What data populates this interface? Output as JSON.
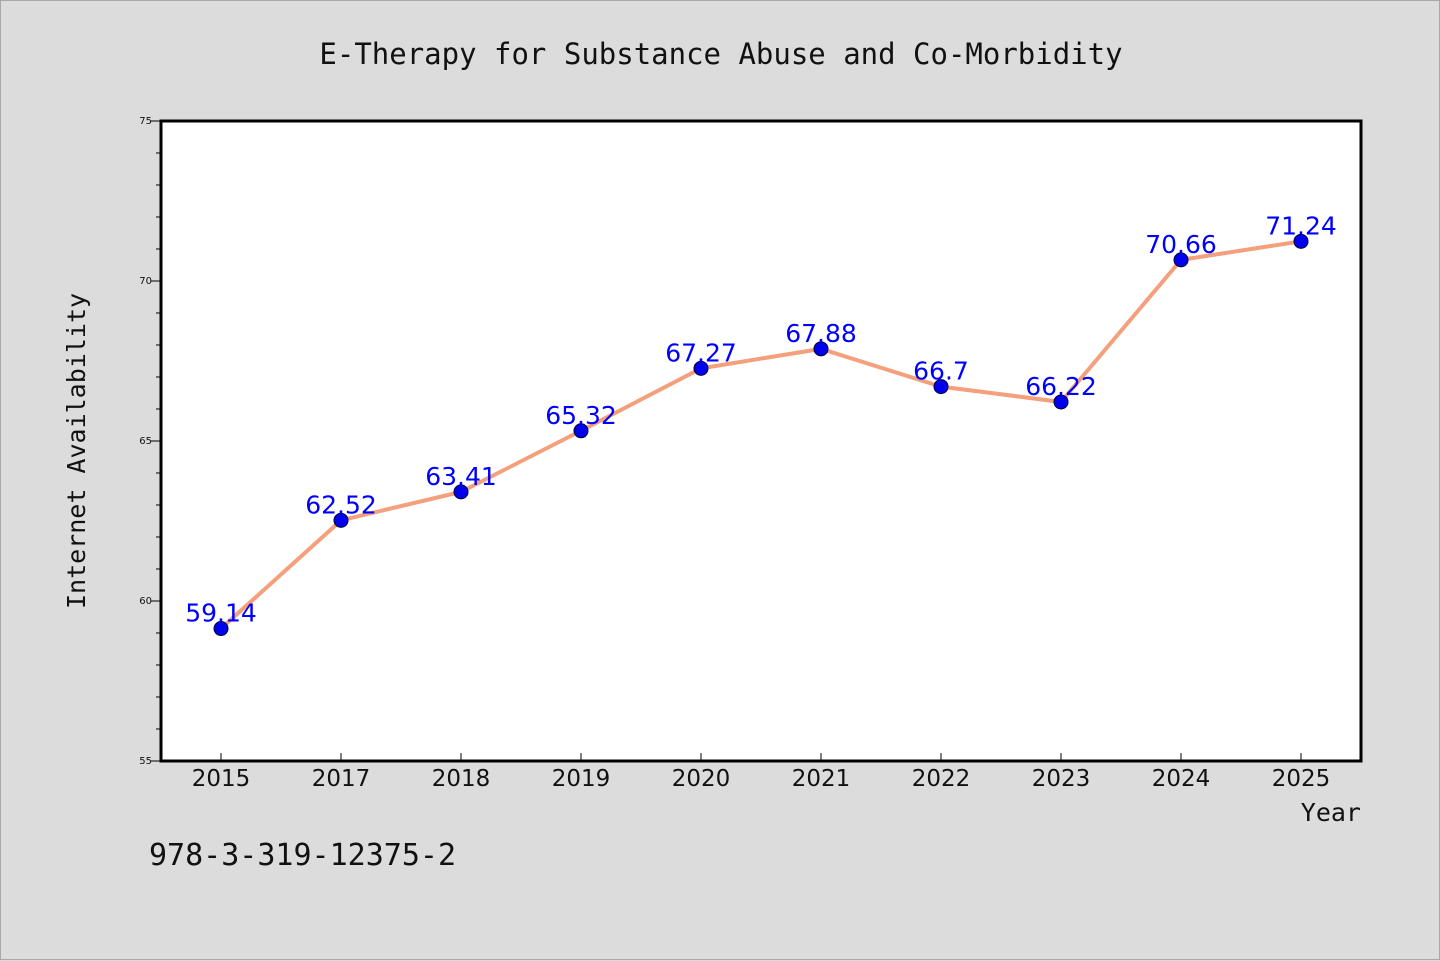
{
  "chart_data": {
    "type": "line",
    "title": "E-Therapy for Substance Abuse and Co-Morbidity",
    "xlabel": "Year",
    "ylabel": "Internet Availability",
    "categories": [
      "2015",
      "2017",
      "2018",
      "2019",
      "2020",
      "2021",
      "2022",
      "2023",
      "2024",
      "2025"
    ],
    "series": [
      {
        "values": [
          59.14,
          62.52,
          63.41,
          65.32,
          67.27,
          67.88,
          66.7,
          66.22,
          70.66,
          71.24
        ],
        "labels": [
          "59.14",
          "62.52",
          "63.41",
          "65.32",
          "67.27",
          "67.88",
          "66.7",
          "66.22",
          "70.66",
          "71.24"
        ]
      }
    ],
    "ylim": [
      55,
      75
    ],
    "yticks": [
      "55",
      "60",
      "65",
      "70",
      "75"
    ],
    "grid": false,
    "legend": "none",
    "colors": {
      "line": "#f4a07c",
      "marker": "#0000ee",
      "label": "#0000ff"
    }
  },
  "footer": {
    "isbn": "978-3-319-12375-2"
  }
}
